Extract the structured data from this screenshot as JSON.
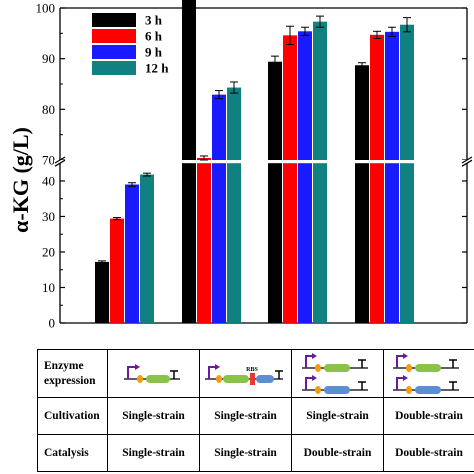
{
  "chart_data": {
    "type": "bar",
    "ylabel": "α-KG (g/L)",
    "y_break": [
      45,
      70
    ],
    "ylim": [
      0,
      100
    ],
    "yticks_lower": [
      "0",
      "10",
      "20",
      "30",
      "40"
    ],
    "yticks_upper": [
      "70",
      "80",
      "90",
      "100"
    ],
    "legend_placement": "top-left",
    "categories": [
      "",
      "",
      "",
      ""
    ],
    "series": [
      {
        "name": "3 h",
        "color": "#000000",
        "values": [
          17.2,
          45.6,
          89.4,
          88.7
        ],
        "errors": [
          0.3,
          0.4,
          1.1,
          0.5
        ]
      },
      {
        "name": "6 h",
        "color": "#ff0000",
        "values": [
          29.4,
          70.4,
          94.6,
          94.7
        ],
        "errors": [
          0.3,
          0.4,
          1.8,
          0.7
        ]
      },
      {
        "name": "9 h",
        "color": "#1a1aff",
        "values": [
          39.0,
          82.9,
          95.4,
          95.3
        ],
        "errors": [
          0.5,
          0.8,
          0.8,
          0.9
        ]
      },
      {
        "name": "12 h",
        "color": "#118080",
        "values": [
          41.8,
          84.3,
          97.3,
          96.7
        ],
        "errors": [
          0.4,
          1.1,
          1.1,
          1.4
        ]
      }
    ]
  },
  "table": {
    "rows": [
      {
        "header": "Enzyme expression",
        "header_lines": [
          "Enzyme",
          "expression"
        ],
        "cells": [
          "",
          "",
          "",
          ""
        ]
      },
      {
        "header": "Cultivation",
        "cells": [
          "Single-strain",
          "Single-strain",
          "Single-strain",
          "Double-strain"
        ]
      },
      {
        "header": "Catalysis",
        "cells": [
          "Single-strain",
          "Single-strain",
          "Double-strain",
          "Double-strain"
        ]
      }
    ],
    "rbs_label": "RBS",
    "colors": {
      "promoter": "#6a1b9a",
      "rbs": "#f39c12",
      "gene_green": "#8bc34a",
      "gene_blue": "#5b8fd1",
      "rbs_red": "#e53935"
    }
  }
}
